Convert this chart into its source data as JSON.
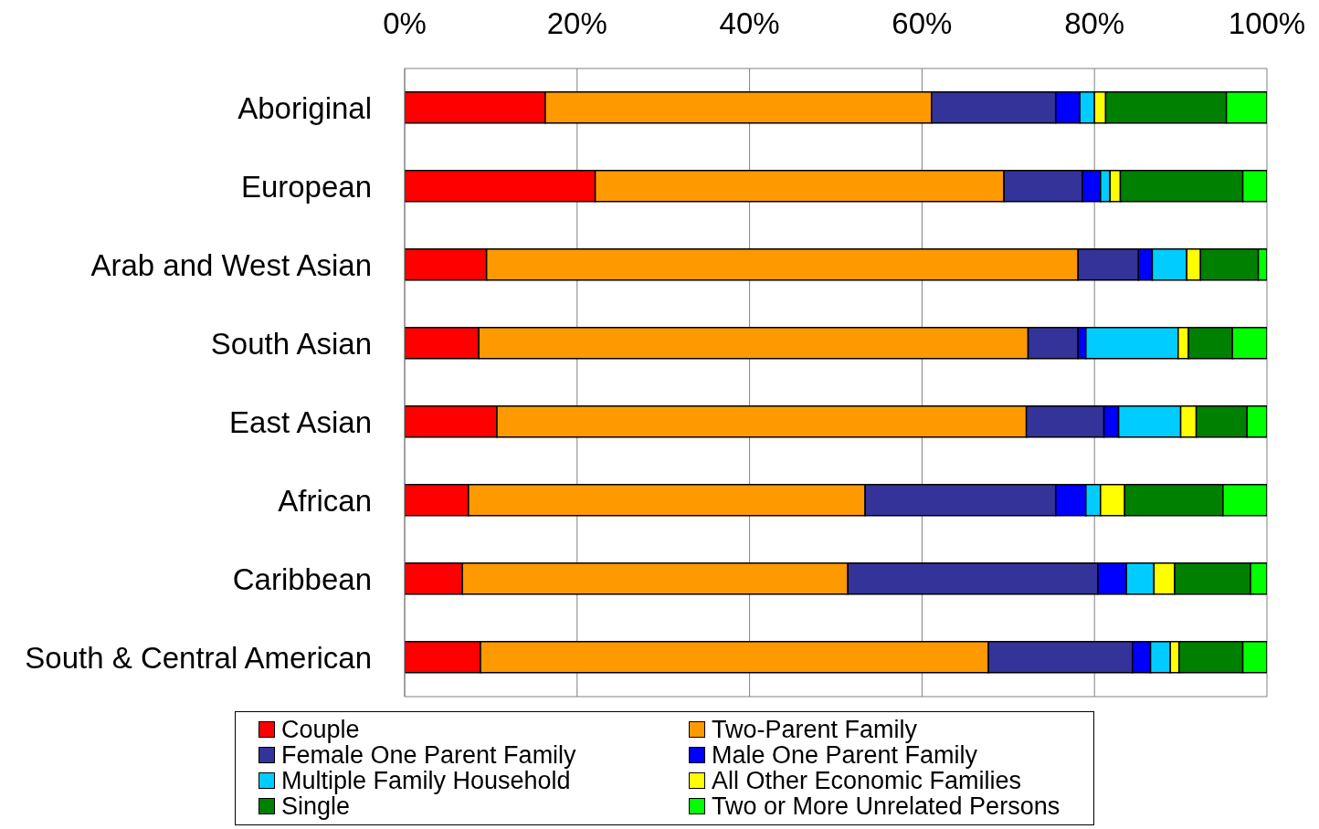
{
  "chart_data": {
    "type": "bar",
    "orientation": "horizontal",
    "stacked": true,
    "categories": [
      "Aboriginal",
      "European",
      "Arab and West Asian",
      "South Asian",
      "East Asian",
      "African",
      "Caribbean",
      "South & Central American"
    ],
    "series": [
      {
        "name": "Couple",
        "color": "#ff0000",
        "values": [
          16.3,
          22.1,
          9.5,
          8.6,
          10.7,
          7.4,
          6.7,
          8.8
        ]
      },
      {
        "name": "Two-Parent Family",
        "color": "#ff9900",
        "values": [
          44.8,
          47.4,
          68.6,
          63.7,
          61.4,
          46.0,
          44.7,
          58.9
        ]
      },
      {
        "name": "Female One Parent Family",
        "color": "#333399",
        "values": [
          14.4,
          9.1,
          7.0,
          5.8,
          9.0,
          22.1,
          29.0,
          16.7
        ]
      },
      {
        "name": "Male One Parent Family",
        "color": "#0000ff",
        "values": [
          2.8,
          2.1,
          1.6,
          0.9,
          1.7,
          3.5,
          3.3,
          2.1
        ]
      },
      {
        "name": "Multiple Family Household",
        "color": "#00ccff",
        "values": [
          1.7,
          1.1,
          4.0,
          10.7,
          7.2,
          1.7,
          3.2,
          2.3
        ]
      },
      {
        "name": "All Other Economic Families",
        "color": "#ffff00",
        "values": [
          1.3,
          1.2,
          1.6,
          1.2,
          1.8,
          2.8,
          2.4,
          1.0
        ]
      },
      {
        "name": "Single",
        "color": "#008000",
        "values": [
          14.0,
          14.2,
          6.7,
          5.1,
          5.9,
          11.4,
          8.8,
          7.4
        ]
      },
      {
        "name": "Two or More Unrelated Persons",
        "color": "#00ff00",
        "values": [
          4.7,
          2.8,
          1.0,
          4.0,
          2.3,
          5.1,
          1.9,
          2.8
        ]
      }
    ],
    "xlim": [
      0,
      100
    ],
    "xticks": [
      {
        "value": 0,
        "label": "0%"
      },
      {
        "value": 20,
        "label": "20%"
      },
      {
        "value": 40,
        "label": "40%"
      },
      {
        "value": 60,
        "label": "60%"
      },
      {
        "value": 80,
        "label": "80%"
      },
      {
        "value": 100,
        "label": "100%"
      }
    ],
    "grid": "x",
    "legend": "bottom"
  }
}
